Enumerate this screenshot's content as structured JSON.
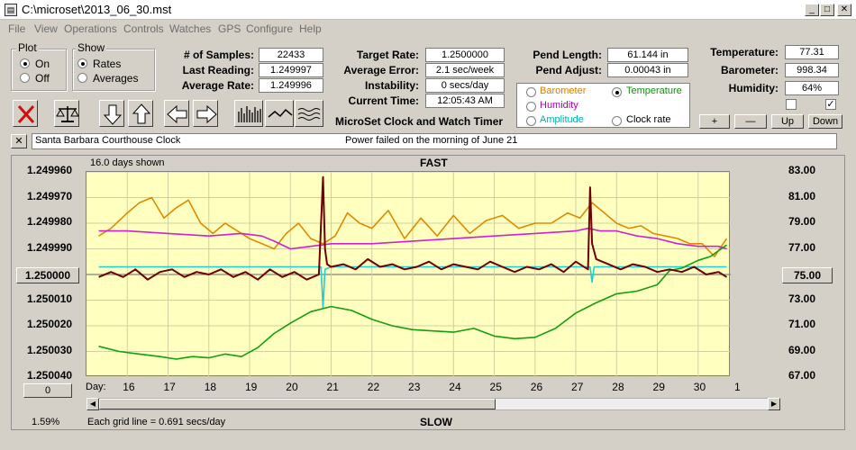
{
  "window": {
    "title": "C:\\microset\\2013_06_30.mst"
  },
  "menu": [
    "File",
    "View",
    "Operations",
    "Controls",
    "Watches",
    "GPS",
    "Configure",
    "Help"
  ],
  "plot_group": {
    "title": "Plot",
    "on": "On",
    "off": "Off",
    "selected": "On"
  },
  "show_group": {
    "title": "Show",
    "rates": "Rates",
    "averages": "Averages",
    "selected": "Rates"
  },
  "stats": {
    "samples_label": "# of Samples:",
    "samples": "22433",
    "last_label": "Last Reading:",
    "last": "1.249997",
    "avg_label": "Average Rate:",
    "avg": "1.249996"
  },
  "target": {
    "target_label": "Target Rate:",
    "target": "1.2500000",
    "err_label": "Average Error:",
    "err": "2.1 sec/week",
    "inst_label": "Instability:",
    "inst": "0 secs/day",
    "time_label": "Current Time:",
    "time": "12:05:43 AM"
  },
  "pend": {
    "len_label": "Pend Length:",
    "len": "61.144 in",
    "adj_label": "Pend Adjust:",
    "adj": "0.00043 in"
  },
  "env": {
    "temp_label": "Temperature:",
    "temp": "77.31",
    "baro_label": "Barometer:",
    "baro": "998.34",
    "hum_label": "Humidity:",
    "hum": "64%"
  },
  "sensor_select": {
    "barometer": "Barometer",
    "temperature": "Temperature",
    "humidity": "Humidity",
    "amplitude": "Amplitude",
    "clock_rate": "Clock rate",
    "selected": "Temperature",
    "colors": {
      "barometer": "#d98000",
      "temperature": "#109010",
      "humidity": "#b000b0",
      "amplitude": "#00b0b0",
      "clock_rate": "#000000"
    }
  },
  "right_buttons": {
    "plus": "+",
    "minus": "—",
    "up": "Up",
    "down": "Down"
  },
  "app_name": "MicroSet Clock and Watch Timer",
  "notes": {
    "close": "✕",
    "clock_name": "Santa Barbara Courthouse Clock",
    "message": "Power failed on the morning of June 21"
  },
  "chart_header": {
    "days_shown": "16.0 days shown",
    "top": "FAST",
    "bottom": "SLOW"
  },
  "footer": {
    "left_pct": "1.59%",
    "grid": "Each grid line = 0.691 secs/day",
    "zero_btn": "0"
  },
  "axis_buttons": {
    "left": "1.250000",
    "right": "75.00"
  },
  "chart_data": {
    "type": "line",
    "xlabel": "Day:",
    "x_ticks": [
      "16",
      "17",
      "18",
      "19",
      "20",
      "21",
      "22",
      "23",
      "24",
      "25",
      "26",
      "27",
      "28",
      "29",
      "30",
      "1"
    ],
    "y_left_ticks": [
      "1.249960",
      "1.249970",
      "1.249980",
      "1.249990",
      "",
      "1.250010",
      "1.250020",
      "1.250030",
      "1.250040"
    ],
    "y_left_center": "1.250000",
    "y_right_ticks": [
      "83.00",
      "81.00",
      "79.00",
      "77.00",
      "",
      "73.00",
      "71.00",
      "69.00",
      "67.00"
    ],
    "y_right_center": "75.00",
    "ylim_left": [
      1.25004,
      1.24996
    ],
    "ylim_right": [
      67,
      83
    ],
    "grid": true,
    "series": [
      {
        "key": "barometer",
        "color": "#e08a00",
        "axis": "left",
        "x": [
          15.3,
          15.6,
          16.0,
          16.3,
          16.6,
          16.9,
          17.2,
          17.5,
          17.8,
          18.1,
          18.4,
          18.7,
          19.0,
          19.3,
          19.6,
          19.9,
          20.2,
          20.5,
          20.8,
          21.1,
          21.4,
          21.7,
          22.0,
          22.4,
          22.8,
          23.2,
          23.6,
          24.0,
          24.4,
          24.8,
          25.2,
          25.6,
          26.0,
          26.4,
          26.8,
          27.1,
          27.4,
          27.7,
          28.0,
          28.3,
          28.6,
          28.9,
          29.2,
          29.5,
          29.8,
          30.1,
          30.4,
          30.7
        ],
        "y": [
          1.249985,
          1.249982,
          1.249976,
          1.249972,
          1.24997,
          1.249978,
          1.249974,
          1.249971,
          1.24998,
          1.249984,
          1.24998,
          1.249983,
          1.249986,
          1.249988,
          1.24999,
          1.249984,
          1.24998,
          1.249986,
          1.249988,
          1.249985,
          1.249976,
          1.24998,
          1.249982,
          1.249975,
          1.249986,
          1.249978,
          1.249985,
          1.249977,
          1.249984,
          1.249979,
          1.249977,
          1.249982,
          1.24998,
          1.24998,
          1.249976,
          1.249978,
          1.249972,
          1.249976,
          1.24998,
          1.249982,
          1.249981,
          1.249984,
          1.249985,
          1.249986,
          1.249988,
          1.249988,
          1.249993,
          1.249986
        ]
      },
      {
        "key": "humidity",
        "color": "#d020d0",
        "axis": "left",
        "x": [
          15.3,
          16.0,
          17.0,
          18.0,
          18.8,
          19.3,
          19.6,
          20.0,
          20.5,
          21.0,
          22.0,
          23.0,
          24.0,
          25.0,
          26.0,
          27.0,
          27.3,
          27.6,
          28.0,
          28.5,
          29.0,
          29.5,
          30.0,
          30.5,
          30.7
        ],
        "y": [
          1.249983,
          1.249983,
          1.249984,
          1.249985,
          1.249984,
          1.249985,
          1.249987,
          1.24999,
          1.249989,
          1.249988,
          1.249988,
          1.249987,
          1.249986,
          1.249985,
          1.249984,
          1.249983,
          1.249982,
          1.249983,
          1.249983,
          1.249985,
          1.249986,
          1.249988,
          1.249989,
          1.249989,
          1.24999
        ]
      },
      {
        "key": "amplitude",
        "color": "#20d0d0",
        "axis": "left",
        "x": [
          15.3,
          17.0,
          19.0,
          20.0,
          20.75,
          20.8,
          20.85,
          21.0,
          22.0,
          24.0,
          26.0,
          27.35,
          27.4,
          27.45,
          28.0,
          30.0,
          30.7
        ],
        "y": [
          1.249997,
          1.249997,
          1.249997,
          1.249997,
          1.249997,
          1.250013,
          1.249998,
          1.249997,
          1.249997,
          1.249997,
          1.249997,
          1.249997,
          1.250003,
          1.249997,
          1.249997,
          1.249997,
          1.249997
        ]
      },
      {
        "key": "temperature",
        "color": "#10a010",
        "axis": "right",
        "x": [
          15.3,
          15.8,
          16.3,
          16.8,
          17.2,
          17.6,
          18.0,
          18.4,
          18.8,
          19.2,
          19.6,
          20.0,
          20.5,
          21.0,
          21.5,
          22.0,
          22.5,
          23.0,
          23.5,
          24.0,
          24.5,
          25.0,
          25.5,
          26.0,
          26.5,
          27.0,
          27.5,
          28.0,
          28.5,
          29.0,
          29.3,
          29.6,
          30.0,
          30.3,
          30.7
        ],
        "y": [
          69.4,
          69.0,
          68.8,
          68.6,
          68.4,
          68.6,
          68.5,
          68.8,
          68.6,
          69.3,
          70.4,
          71.2,
          72.1,
          72.5,
          72.2,
          71.5,
          71.0,
          70.7,
          70.6,
          70.5,
          70.8,
          70.2,
          70.0,
          70.1,
          70.8,
          72.0,
          72.8,
          73.5,
          73.7,
          74.2,
          75.3,
          75.5,
          76.1,
          76.4,
          77.3
        ]
      },
      {
        "key": "clock_rate",
        "color": "#700000",
        "axis": "left",
        "x": [
          15.3,
          15.6,
          15.9,
          16.2,
          16.5,
          16.8,
          17.1,
          17.4,
          17.7,
          18.0,
          18.3,
          18.6,
          18.9,
          19.2,
          19.5,
          19.8,
          20.1,
          20.4,
          20.7,
          20.8,
          20.85,
          20.9,
          21.0,
          21.3,
          21.6,
          21.9,
          22.2,
          22.5,
          22.8,
          23.1,
          23.4,
          23.7,
          24.0,
          24.3,
          24.6,
          24.9,
          25.2,
          25.5,
          25.8,
          26.1,
          26.4,
          26.7,
          27.0,
          27.3,
          27.35,
          27.4,
          27.5,
          27.8,
          28.1,
          28.4,
          28.7,
          29.0,
          29.3,
          29.6,
          29.9,
          30.2,
          30.5,
          30.7
        ],
        "y": [
          1.250001,
          1.249999,
          1.250001,
          1.249998,
          1.250002,
          1.249999,
          1.249998,
          1.250001,
          1.249999,
          1.25,
          1.249998,
          1.250001,
          1.249999,
          1.250002,
          1.249998,
          1.250001,
          1.249999,
          1.250002,
          1.25,
          1.249962,
          1.24999,
          1.249996,
          1.249997,
          1.249996,
          1.249998,
          1.249994,
          1.249997,
          1.249996,
          1.249998,
          1.249997,
          1.249995,
          1.249998,
          1.249996,
          1.249997,
          1.249998,
          1.249995,
          1.249997,
          1.249999,
          1.249997,
          1.249998,
          1.249996,
          1.249999,
          1.249995,
          1.249998,
          1.249966,
          1.249988,
          1.249994,
          1.249996,
          1.249998,
          1.249996,
          1.249997,
          1.249999,
          1.249998,
          1.249999,
          1.249997,
          1.25,
          1.249999,
          1.250001
        ]
      }
    ]
  }
}
